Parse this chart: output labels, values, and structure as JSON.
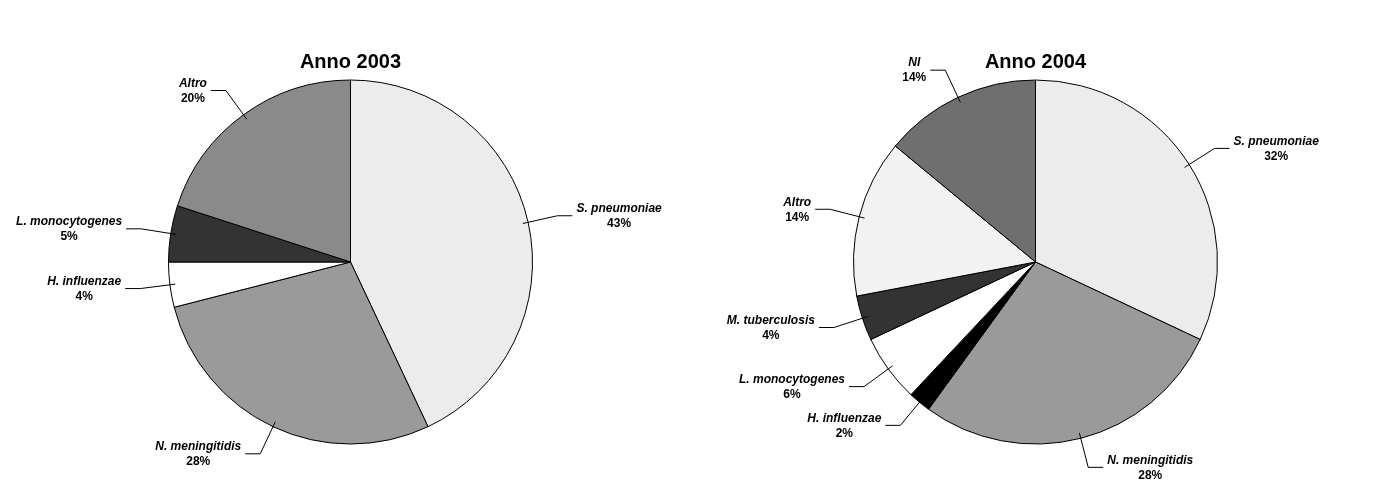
{
  "chart_data": [
    {
      "type": "pie",
      "title": "Anno 2003",
      "categories": [
        "S. pneumoniae",
        "N. meningitidis",
        "H. influenzae",
        "L. monocytogenes",
        "Altro"
      ],
      "values": [
        43,
        28,
        4,
        5,
        20
      ],
      "value_labels": [
        "43%",
        "28%",
        "4%",
        "5%",
        "20%"
      ],
      "colors": [
        "#ececec",
        "#9a9a9a",
        "#ffffff",
        "#333333",
        "#8a8a8a"
      ],
      "legend": false
    },
    {
      "type": "pie",
      "title": "Anno 2004",
      "categories": [
        "S. pneumoniae",
        "N. meningitidis",
        "H. influenzae",
        "L. monocytogenes",
        "M. tuberculosis",
        "Altro",
        "NI"
      ],
      "values": [
        32,
        28,
        2,
        6,
        4,
        14,
        14
      ],
      "value_labels": [
        "32%",
        "28%",
        "2%",
        "6%",
        "4%",
        "14%",
        "14%"
      ],
      "colors": [
        "#ececec",
        "#9a9a9a",
        "#000000",
        "#ffffff",
        "#333333",
        "#f2f2f2",
        "#6f6f6f"
      ],
      "legend": false
    }
  ]
}
